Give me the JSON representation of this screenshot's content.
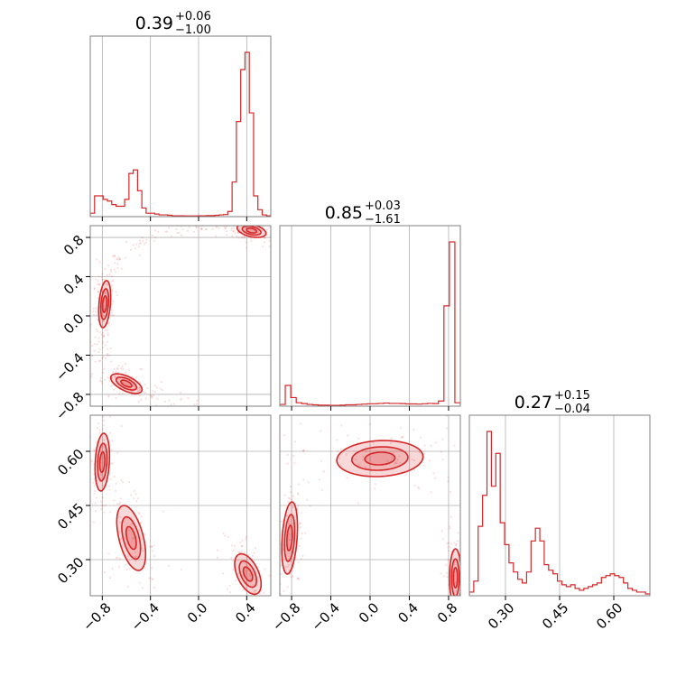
{
  "chart_data": {
    "type": "corner",
    "color": "#d62728",
    "parameters": [
      {
        "title": {
          "value": "0.39",
          "plus": "+0.06",
          "minus": "−1.00"
        },
        "range": [
          -0.9,
          0.6
        ],
        "ticks": [
          -0.8,
          -0.4,
          0.0,
          0.4
        ],
        "tick_labels": [
          "−0.8",
          "−0.4",
          "0.0",
          "0.4"
        ]
      },
      {
        "title": {
          "value": "0.85",
          "plus": "+0.03",
          "minus": "−1.61"
        },
        "range": [
          -0.92,
          0.92
        ],
        "ticks": [
          -0.8,
          -0.4,
          0.0,
          0.4,
          0.8
        ],
        "tick_labels": [
          "−0.8",
          "−0.4",
          "0.0",
          "0.4",
          "0.8"
        ]
      },
      {
        "title": {
          "value": "0.27",
          "plus": "+0.15",
          "minus": "−0.04"
        },
        "range": [
          0.2,
          0.7
        ],
        "ticks": [
          0.3,
          0.45,
          0.6
        ],
        "tick_labels": [
          "0.30",
          "0.45",
          "0.60"
        ]
      }
    ],
    "histograms": [
      {
        "param": 0,
        "bins": [
          -0.9,
          0.6
        ],
        "values": [
          0.02,
          0.12,
          0.12,
          0.1,
          0.09,
          0.07,
          0.06,
          0.06,
          0.1,
          0.25,
          0.27,
          0.15,
          0.05,
          0.02,
          0.02,
          0.015,
          0.01,
          0.01,
          0.008,
          0.005,
          0.005,
          0.005,
          0.004,
          0.004,
          0.004,
          0.005,
          0.005,
          0.006,
          0.006,
          0.008,
          0.01,
          0.012,
          0.03,
          0.2,
          0.55,
          0.85,
          0.95,
          0.6,
          0.12,
          0.04,
          0.01,
          0.005
        ]
      },
      {
        "param": 1,
        "bins": [
          -0.92,
          0.92
        ],
        "values": [
          0.01,
          0.12,
          0.05,
          0.02,
          0.015,
          0.01,
          0.008,
          0.006,
          0.006,
          0.005,
          0.005,
          0.006,
          0.008,
          0.008,
          0.01,
          0.012,
          0.014,
          0.014,
          0.016,
          0.018,
          0.016,
          0.016,
          0.015,
          0.013,
          0.013,
          0.012,
          0.014,
          0.016,
          0.015,
          0.03,
          0.58,
          0.95,
          0.02
        ]
      },
      {
        "param": 2,
        "bins": [
          0.2,
          0.7
        ],
        "values": [
          0.02,
          0.08,
          0.38,
          0.55,
          0.9,
          0.6,
          0.78,
          0.4,
          0.28,
          0.18,
          0.13,
          0.09,
          0.07,
          0.13,
          0.3,
          0.37,
          0.3,
          0.17,
          0.14,
          0.12,
          0.08,
          0.06,
          0.05,
          0.06,
          0.04,
          0.03,
          0.04,
          0.05,
          0.06,
          0.07,
          0.1,
          0.11,
          0.12,
          0.11,
          0.1,
          0.07,
          0.04,
          0.03,
          0.02,
          0.02,
          0.01
        ]
      }
    ],
    "pairs": [
      {
        "x": 0,
        "y": 1,
        "modes": [
          {
            "center": [
              0.44,
              0.87
            ],
            "sigma": [
              0.06,
              0.035
            ],
            "rho": -0.4
          },
          {
            "center": [
              -0.78,
              0.12
            ],
            "sigma": [
              0.025,
              0.12
            ],
            "rho": 0.3
          },
          {
            "center": [
              -0.6,
              -0.69
            ],
            "sigma": [
              0.065,
              0.05
            ],
            "rho": -0.6
          }
        ]
      },
      {
        "x": 0,
        "y": 2,
        "modes": [
          {
            "center": [
              -0.8,
              0.57
            ],
            "sigma": [
              0.03,
              0.04
            ],
            "rho": 0.2
          },
          {
            "center": [
              -0.56,
              0.36
            ],
            "sigma": [
              0.06,
              0.045
            ],
            "rho": -0.5
          },
          {
            "center": [
              0.41,
              0.26
            ],
            "sigma": [
              0.055,
              0.028
            ],
            "rho": -0.5
          }
        ]
      },
      {
        "x": 1,
        "y": 2,
        "modes": [
          {
            "center": [
              -0.82,
              0.36
            ],
            "sigma": [
              0.04,
              0.05
            ],
            "rho": 0.3
          },
          {
            "center": [
              0.1,
              0.58
            ],
            "sigma": [
              0.22,
              0.025
            ],
            "rho": 0.1
          },
          {
            "center": [
              0.87,
              0.25
            ],
            "sigma": [
              0.03,
              0.04
            ],
            "rho": 0.0
          }
        ]
      }
    ]
  }
}
